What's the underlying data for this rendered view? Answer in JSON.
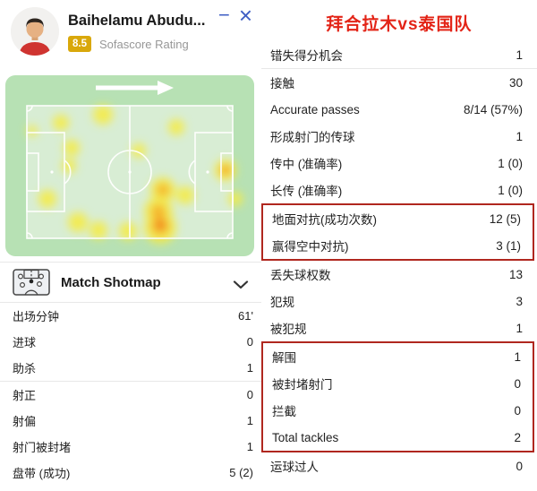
{
  "colors": {
    "title_red": "#e32417",
    "box_red": "#b0271f",
    "rating_gold": "#d9a80b",
    "icon_blue": "#3f5ec4"
  },
  "player_card": {
    "name": "Baihelamu Abudu...",
    "rating": "8.5",
    "rating_label": "Sofascore Rating"
  },
  "window_controls": {
    "minimize_glyph": "−",
    "close_glyph": "×"
  },
  "heatmap": {
    "icon": "attack-direction-arrow"
  },
  "shotmap_header": {
    "label": "Match Shotmap",
    "icon": "shotmap-pitch-icon",
    "chevron": "chevron-down-icon"
  },
  "left_stats": [
    {
      "label": "出场分钟",
      "value": "61'"
    },
    {
      "label": "进球",
      "value": "0"
    },
    {
      "label": "助杀",
      "value": "1",
      "divider_after": true
    },
    {
      "label": "射正",
      "value": "0"
    },
    {
      "label": "射偏",
      "value": "1"
    },
    {
      "label": "射门被封堵",
      "value": "1"
    },
    {
      "label": "盘带 (成功)",
      "value": "5 (2)"
    }
  ],
  "right_panel": {
    "title": "拜合拉木vs泰国队",
    "groups": [
      {
        "boxed": false,
        "divider_after": true,
        "rows": [
          {
            "label": "错失得分机会",
            "value": "1"
          }
        ]
      },
      {
        "boxed": false,
        "rows": [
          {
            "label": "接触",
            "value": "30"
          },
          {
            "label": "Accurate passes",
            "value": "8/14 (57%)"
          },
          {
            "label": "形成射门的传球",
            "value": "1"
          },
          {
            "label": "传中 (准确率)",
            "value": "1 (0)"
          },
          {
            "label": "长传 (准确率)",
            "value": "1 (0)"
          }
        ]
      },
      {
        "boxed": true,
        "rows": [
          {
            "label": "地面对抗(成功次数)",
            "value": "12 (5)"
          },
          {
            "label": "赢得空中对抗)",
            "value": "3 (1)"
          }
        ]
      },
      {
        "boxed": false,
        "rows": [
          {
            "label": "丢失球权数",
            "value": "13"
          },
          {
            "label": "犯规",
            "value": "3"
          },
          {
            "label": "被犯规",
            "value": "1"
          }
        ]
      },
      {
        "boxed": true,
        "rows": [
          {
            "label": "解围",
            "value": "1"
          },
          {
            "label": "被封堵射门",
            "value": "0"
          },
          {
            "label": "拦截",
            "value": "0"
          },
          {
            "label": "Total tackles",
            "value": "2"
          }
        ]
      },
      {
        "boxed": false,
        "rows": [
          {
            "label": "运球过人",
            "value": "0"
          }
        ]
      }
    ]
  }
}
